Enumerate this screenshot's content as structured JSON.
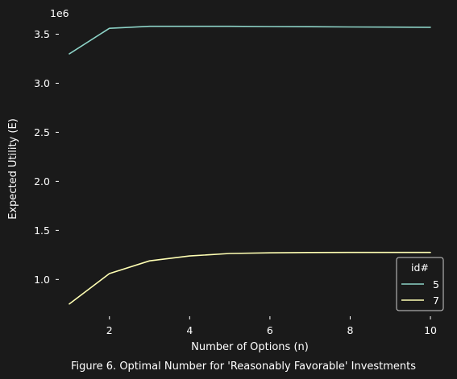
{
  "chart_data": {
    "type": "line",
    "title": "",
    "xlabel": "Number of Options (n)",
    "ylabel": "Expected Utility (E)",
    "y_scale_label": "1e6",
    "caption": "Figure 6. Optimal Number for 'Reasonably Favorable' Investments",
    "x": [
      1,
      2,
      3,
      4,
      5,
      6,
      7,
      8,
      9,
      10
    ],
    "xlim": [
      0.8,
      10.2
    ],
    "ylim": [
      0.65,
      3.75
    ],
    "x_ticks": [
      2,
      4,
      6,
      8,
      10
    ],
    "y_ticks": [
      1.0,
      1.5,
      2.0,
      2.5,
      3.0,
      3.5
    ],
    "x_tick_labels": [
      "2",
      "4",
      "6",
      "8",
      "10"
    ],
    "y_tick_labels": [
      "1.0",
      "1.5",
      "2.0",
      "2.5",
      "3.0",
      "3.5"
    ],
    "grid": false,
    "legend": {
      "title": "id#",
      "placement": "lower-right"
    },
    "series": [
      {
        "name": "5",
        "color": "#8dd3c7",
        "values": [
          3.3,
          3.56,
          3.58,
          3.58,
          3.58,
          3.578,
          3.576,
          3.574,
          3.572,
          3.57
        ]
      },
      {
        "name": "7",
        "color": "#ffffb3",
        "values": [
          0.75,
          1.06,
          1.19,
          1.24,
          1.265,
          1.272,
          1.275,
          1.276,
          1.276,
          1.276
        ]
      }
    ]
  }
}
